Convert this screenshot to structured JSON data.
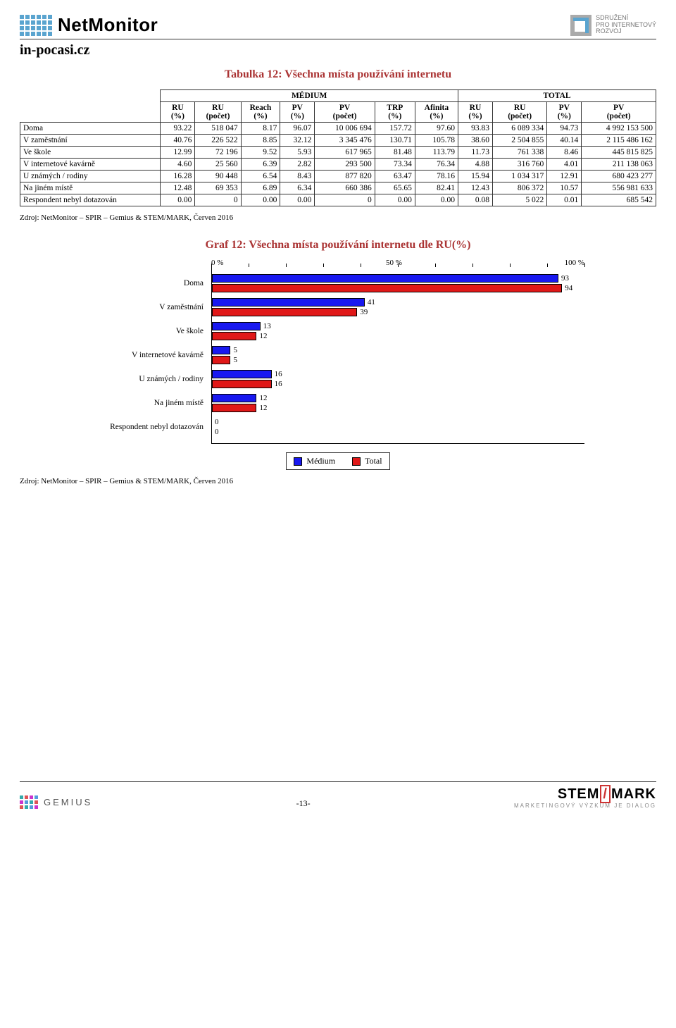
{
  "header": {
    "brand": "NetMonitor",
    "spir_lines": [
      "SDRUŽENÍ",
      "PRO INTERNETOVÝ",
      "ROZVOJ"
    ]
  },
  "site_name": "in-pocasi.cz",
  "table": {
    "title": "Tabulka 12: Všechna místa používání internetu",
    "group_headers": [
      "MÉDIUM",
      "TOTAL"
    ],
    "columns": [
      "RU (%)",
      "RU (počet)",
      "Reach (%)",
      "PV (%)",
      "PV (počet)",
      "TRP (%)",
      "Afinita (%)",
      "RU (%)",
      "RU (počet)",
      "PV (%)",
      "PV (počet)"
    ],
    "rows": [
      {
        "label": "Doma",
        "cells": [
          "93.22",
          "518 047",
          "8.17",
          "96.07",
          "10 006 694",
          "157.72",
          "97.60",
          "93.83",
          "6 089 334",
          "94.73",
          "4 992 153 500"
        ]
      },
      {
        "label": "V zaměstnání",
        "cells": [
          "40.76",
          "226 522",
          "8.85",
          "32.12",
          "3 345 476",
          "130.71",
          "105.78",
          "38.60",
          "2 504 855",
          "40.14",
          "2 115 486 162"
        ]
      },
      {
        "label": "Ve škole",
        "cells": [
          "12.99",
          "72 196",
          "9.52",
          "5.93",
          "617 965",
          "81.48",
          "113.79",
          "11.73",
          "761 338",
          "8.46",
          "445 815 825"
        ]
      },
      {
        "label": "V internetové kavárně",
        "cells": [
          "4.60",
          "25 560",
          "6.39",
          "2.82",
          "293 500",
          "73.34",
          "76.34",
          "4.88",
          "316 760",
          "4.01",
          "211 138 063"
        ]
      },
      {
        "label": "U známých / rodiny",
        "cells": [
          "16.28",
          "90 448",
          "6.54",
          "8.43",
          "877 820",
          "63.47",
          "78.16",
          "15.94",
          "1 034 317",
          "12.91",
          "680 423 277"
        ]
      },
      {
        "label": "Na jiném místě",
        "sec": true,
        "cells": [
          "12.48",
          "69 353",
          "6.89",
          "6.34",
          "660 386",
          "65.65",
          "82.41",
          "12.43",
          "806 372",
          "10.57",
          "556 981 633"
        ]
      },
      {
        "label": "Respondent nebyl dotazován",
        "cells": [
          "0.00",
          "0",
          "0.00",
          "0.00",
          "0",
          "0.00",
          "0.00",
          "0.08",
          "5 022",
          "0.01",
          "685 542"
        ]
      }
    ]
  },
  "source_text": "Zdroj: NetMonitor – SPIR – Gemius & STEM/MARK, Červen 2016",
  "chart": {
    "title": "Graf 12: Všechna místa používání internetu dle RU(%)",
    "axis_labels": [
      "0 %",
      "50 %",
      "100 %"
    ],
    "xmax": 100,
    "colors": {
      "medium": "#1818f0",
      "total": "#e01818"
    },
    "legend": [
      "Médium",
      "Total"
    ],
    "rows": [
      {
        "label": "Doma",
        "v1": 93,
        "v2": 94
      },
      {
        "label": "V zaměstnání",
        "v1": 41,
        "v2": 39
      },
      {
        "label": "Ve škole",
        "v1": 13,
        "v2": 12
      },
      {
        "label": "V internetové kavárně",
        "v1": 5,
        "v2": 5
      },
      {
        "label": "U známých / rodiny",
        "v1": 16,
        "v2": 16
      },
      {
        "label": "Na jiném místě",
        "v1": 12,
        "v2": 12
      },
      {
        "label": "Respondent nebyl dotazován",
        "v1": 0,
        "v2": 0
      }
    ]
  },
  "footer": {
    "gemius": "GEMIUS",
    "page_number": "-13-",
    "stemmark": "STEM MARK",
    "stemmark_sub": "MARKETINGOVÝ VÝZKUM JE DIALOG"
  }
}
